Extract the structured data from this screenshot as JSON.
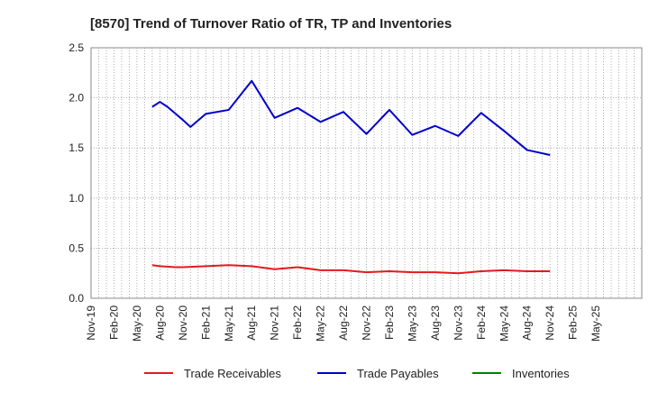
{
  "chart_data": {
    "type": "line",
    "title": "[8570]  Trend of Turnover Ratio of TR, TP and Inventories",
    "xlabel": "",
    "ylabel": "",
    "ylim": [
      0,
      2.5
    ],
    "yticks": [
      "0.0",
      "0.5",
      "1.0",
      "1.5",
      "2.0",
      "2.5"
    ],
    "grid": true,
    "legend_position": "bottom",
    "categories": [
      "Nov-19",
      "Dec-19",
      "Jan-20",
      "Feb-20",
      "Mar-20",
      "Apr-20",
      "May-20",
      "Jun-20",
      "Jul-20",
      "Aug-20",
      "Sep-20",
      "Oct-20",
      "Nov-20",
      "Dec-20",
      "Jan-21",
      "Feb-21",
      "Mar-21",
      "Apr-21",
      "May-21",
      "Jun-21",
      "Jul-21",
      "Aug-21",
      "Sep-21",
      "Oct-21",
      "Nov-21",
      "Dec-21",
      "Jan-22",
      "Feb-22",
      "Mar-22",
      "Apr-22",
      "May-22",
      "Jun-22",
      "Jul-22",
      "Aug-22",
      "Sep-22",
      "Oct-22",
      "Nov-22",
      "Dec-22",
      "Jan-23",
      "Feb-23",
      "Mar-23",
      "Apr-23",
      "May-23",
      "Jun-23",
      "Jul-23",
      "Aug-23",
      "Sep-23",
      "Oct-23",
      "Nov-23",
      "Dec-23",
      "Jan-24",
      "Feb-24",
      "Mar-24",
      "Apr-24",
      "May-24",
      "Jun-24",
      "Jul-24",
      "Aug-24",
      "Sep-24",
      "Oct-24",
      "Nov-24",
      "Dec-24",
      "Jan-25",
      "Feb-25",
      "Mar-25",
      "Apr-25",
      "May-25",
      "Jun-25",
      "Jul-25",
      "Aug-25",
      "Sep-25",
      "Oct-25",
      "Nov-25"
    ],
    "tick_labels": [
      "Nov-19",
      "Feb-20",
      "May-20",
      "Aug-20",
      "Nov-20",
      "Feb-21",
      "May-21",
      "Aug-21",
      "Nov-21",
      "Feb-22",
      "May-22",
      "Aug-22",
      "Nov-22",
      "Feb-23",
      "May-23",
      "Aug-23",
      "Nov-23",
      "Feb-24",
      "May-24",
      "Aug-24",
      "Nov-24",
      "Feb-25",
      "May-25"
    ],
    "series": [
      {
        "name": "Trade Receivables",
        "color": "#e31a1c",
        "points": [
          [
            "Jul-20",
            0.33
          ],
          [
            "Aug-20",
            0.32
          ],
          [
            "Oct-20",
            0.31
          ],
          [
            "Nov-20",
            0.31
          ],
          [
            "Feb-21",
            0.32
          ],
          [
            "May-21",
            0.33
          ],
          [
            "Aug-21",
            0.32
          ],
          [
            "Nov-21",
            0.29
          ],
          [
            "Feb-22",
            0.31
          ],
          [
            "May-22",
            0.28
          ],
          [
            "Aug-22",
            0.28
          ],
          [
            "Nov-22",
            0.26
          ],
          [
            "Feb-23",
            0.27
          ],
          [
            "May-23",
            0.26
          ],
          [
            "Aug-23",
            0.26
          ],
          [
            "Nov-23",
            0.25
          ],
          [
            "Feb-24",
            0.27
          ],
          [
            "May-24",
            0.28
          ],
          [
            "Aug-24",
            0.27
          ],
          [
            "Nov-24",
            0.27
          ]
        ]
      },
      {
        "name": "Trade Payables",
        "color": "#0000cc",
        "points": [
          [
            "Jul-20",
            1.91
          ],
          [
            "Aug-20",
            1.96
          ],
          [
            "Sep-20",
            1.91
          ],
          [
            "Nov-20",
            1.78
          ],
          [
            "Dec-20",
            1.71
          ],
          [
            "Feb-21",
            1.84
          ],
          [
            "May-21",
            1.88
          ],
          [
            "Aug-21",
            2.17
          ],
          [
            "Nov-21",
            1.8
          ],
          [
            "Feb-22",
            1.9
          ],
          [
            "May-22",
            1.76
          ],
          [
            "Aug-22",
            1.86
          ],
          [
            "Nov-22",
            1.64
          ],
          [
            "Feb-23",
            1.88
          ],
          [
            "May-23",
            1.63
          ],
          [
            "Aug-23",
            1.72
          ],
          [
            "Nov-23",
            1.62
          ],
          [
            "Feb-24",
            1.85
          ],
          [
            "May-24",
            1.67
          ],
          [
            "Aug-24",
            1.48
          ],
          [
            "Nov-24",
            1.43
          ]
        ]
      },
      {
        "name": "Inventories",
        "color": "#008000",
        "points": []
      }
    ]
  }
}
